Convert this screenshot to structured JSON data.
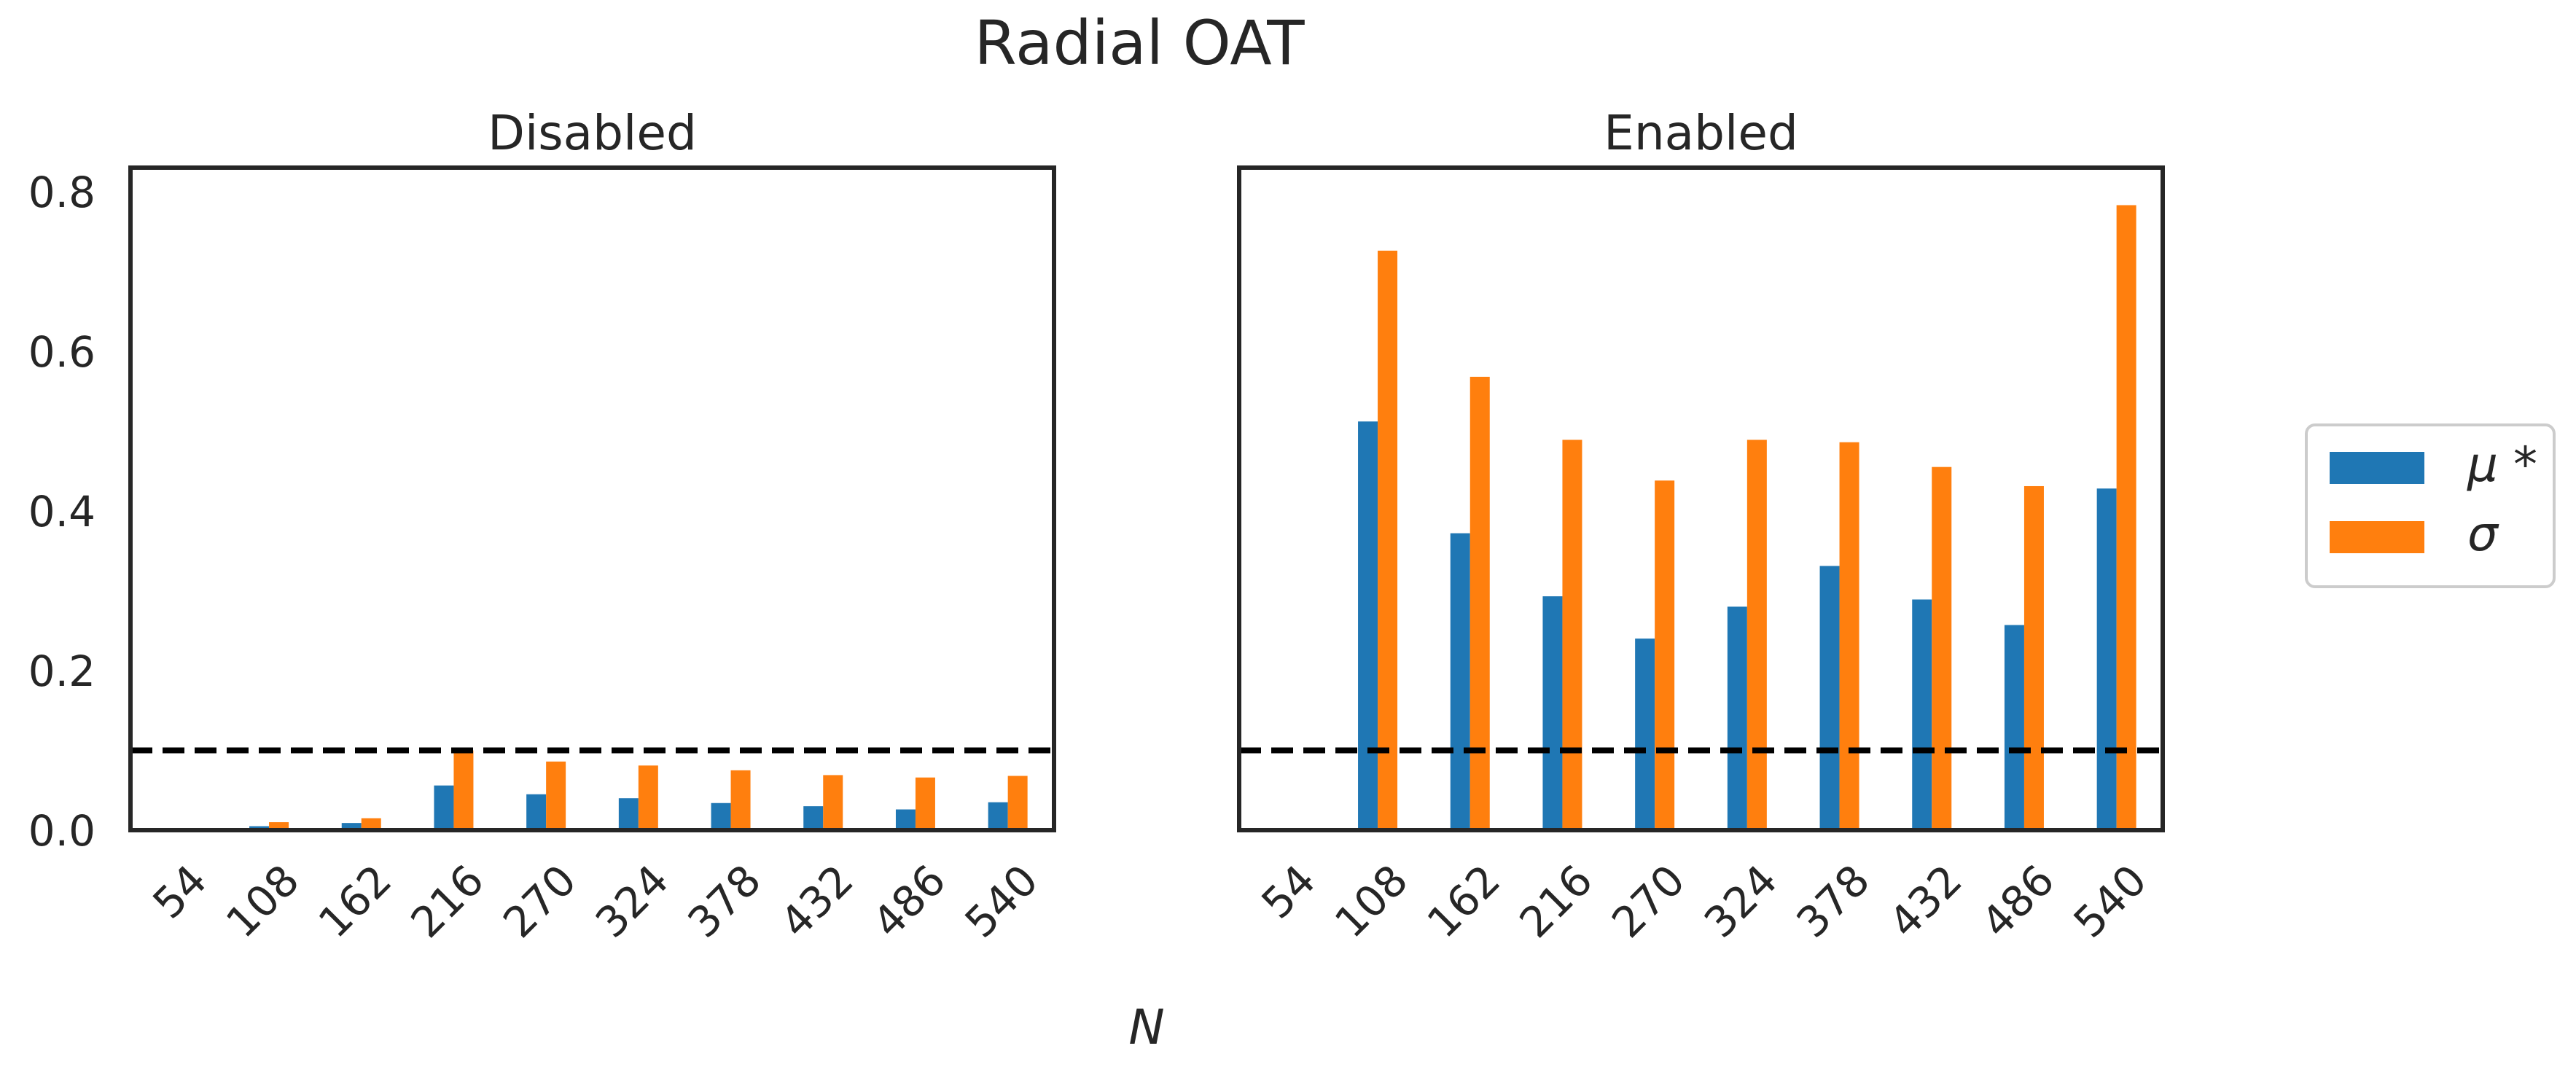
{
  "figure": {
    "title": "Radial OAT",
    "xlabel": "N"
  },
  "legend": {
    "placement": "right",
    "entries": [
      {
        "label": "μ *",
        "color": "#1f77b4"
      },
      {
        "label": "σ",
        "color": "#ff7f0e"
      }
    ]
  },
  "chart_data": [
    {
      "type": "bar",
      "title": "Disabled",
      "xlabel": "N",
      "ylabel": "",
      "ylim": [
        0,
        0.83
      ],
      "yticks": [
        "0.0",
        "0.2",
        "0.4",
        "0.6",
        "0.8"
      ],
      "categories": [
        "54",
        "108",
        "162",
        "216",
        "270",
        "324",
        "378",
        "432",
        "486",
        "540"
      ],
      "series": [
        {
          "name": "μ *",
          "color": "#1f77b4",
          "values": [
            0.0,
            0.005,
            0.009,
            0.056,
            0.045,
            0.04,
            0.034,
            0.03,
            0.026,
            0.035
          ]
        },
        {
          "name": "σ",
          "color": "#ff7f0e",
          "values": [
            0.0,
            0.01,
            0.015,
            0.1,
            0.086,
            0.081,
            0.075,
            0.069,
            0.066,
            0.068
          ]
        }
      ],
      "threshold": {
        "value": 0.1,
        "style": "dashed",
        "color": "#000000"
      },
      "grid": false
    },
    {
      "type": "bar",
      "title": "Enabled",
      "xlabel": "N",
      "ylabel": "",
      "ylim": [
        0,
        0.83
      ],
      "yticks": [
        "0.0",
        "0.2",
        "0.4",
        "0.6",
        "0.8"
      ],
      "categories": [
        "54",
        "108",
        "162",
        "216",
        "270",
        "324",
        "378",
        "432",
        "486",
        "540"
      ],
      "series": [
        {
          "name": "μ *",
          "color": "#1f77b4",
          "values": [
            0.0,
            0.512,
            0.372,
            0.293,
            0.24,
            0.28,
            0.331,
            0.289,
            0.257,
            0.428
          ]
        },
        {
          "name": "σ",
          "color": "#ff7f0e",
          "values": [
            0.0,
            0.726,
            0.568,
            0.489,
            0.438,
            0.489,
            0.486,
            0.455,
            0.431,
            0.783
          ]
        }
      ],
      "threshold": {
        "value": 0.1,
        "style": "dashed",
        "color": "#000000"
      },
      "grid": false
    }
  ]
}
